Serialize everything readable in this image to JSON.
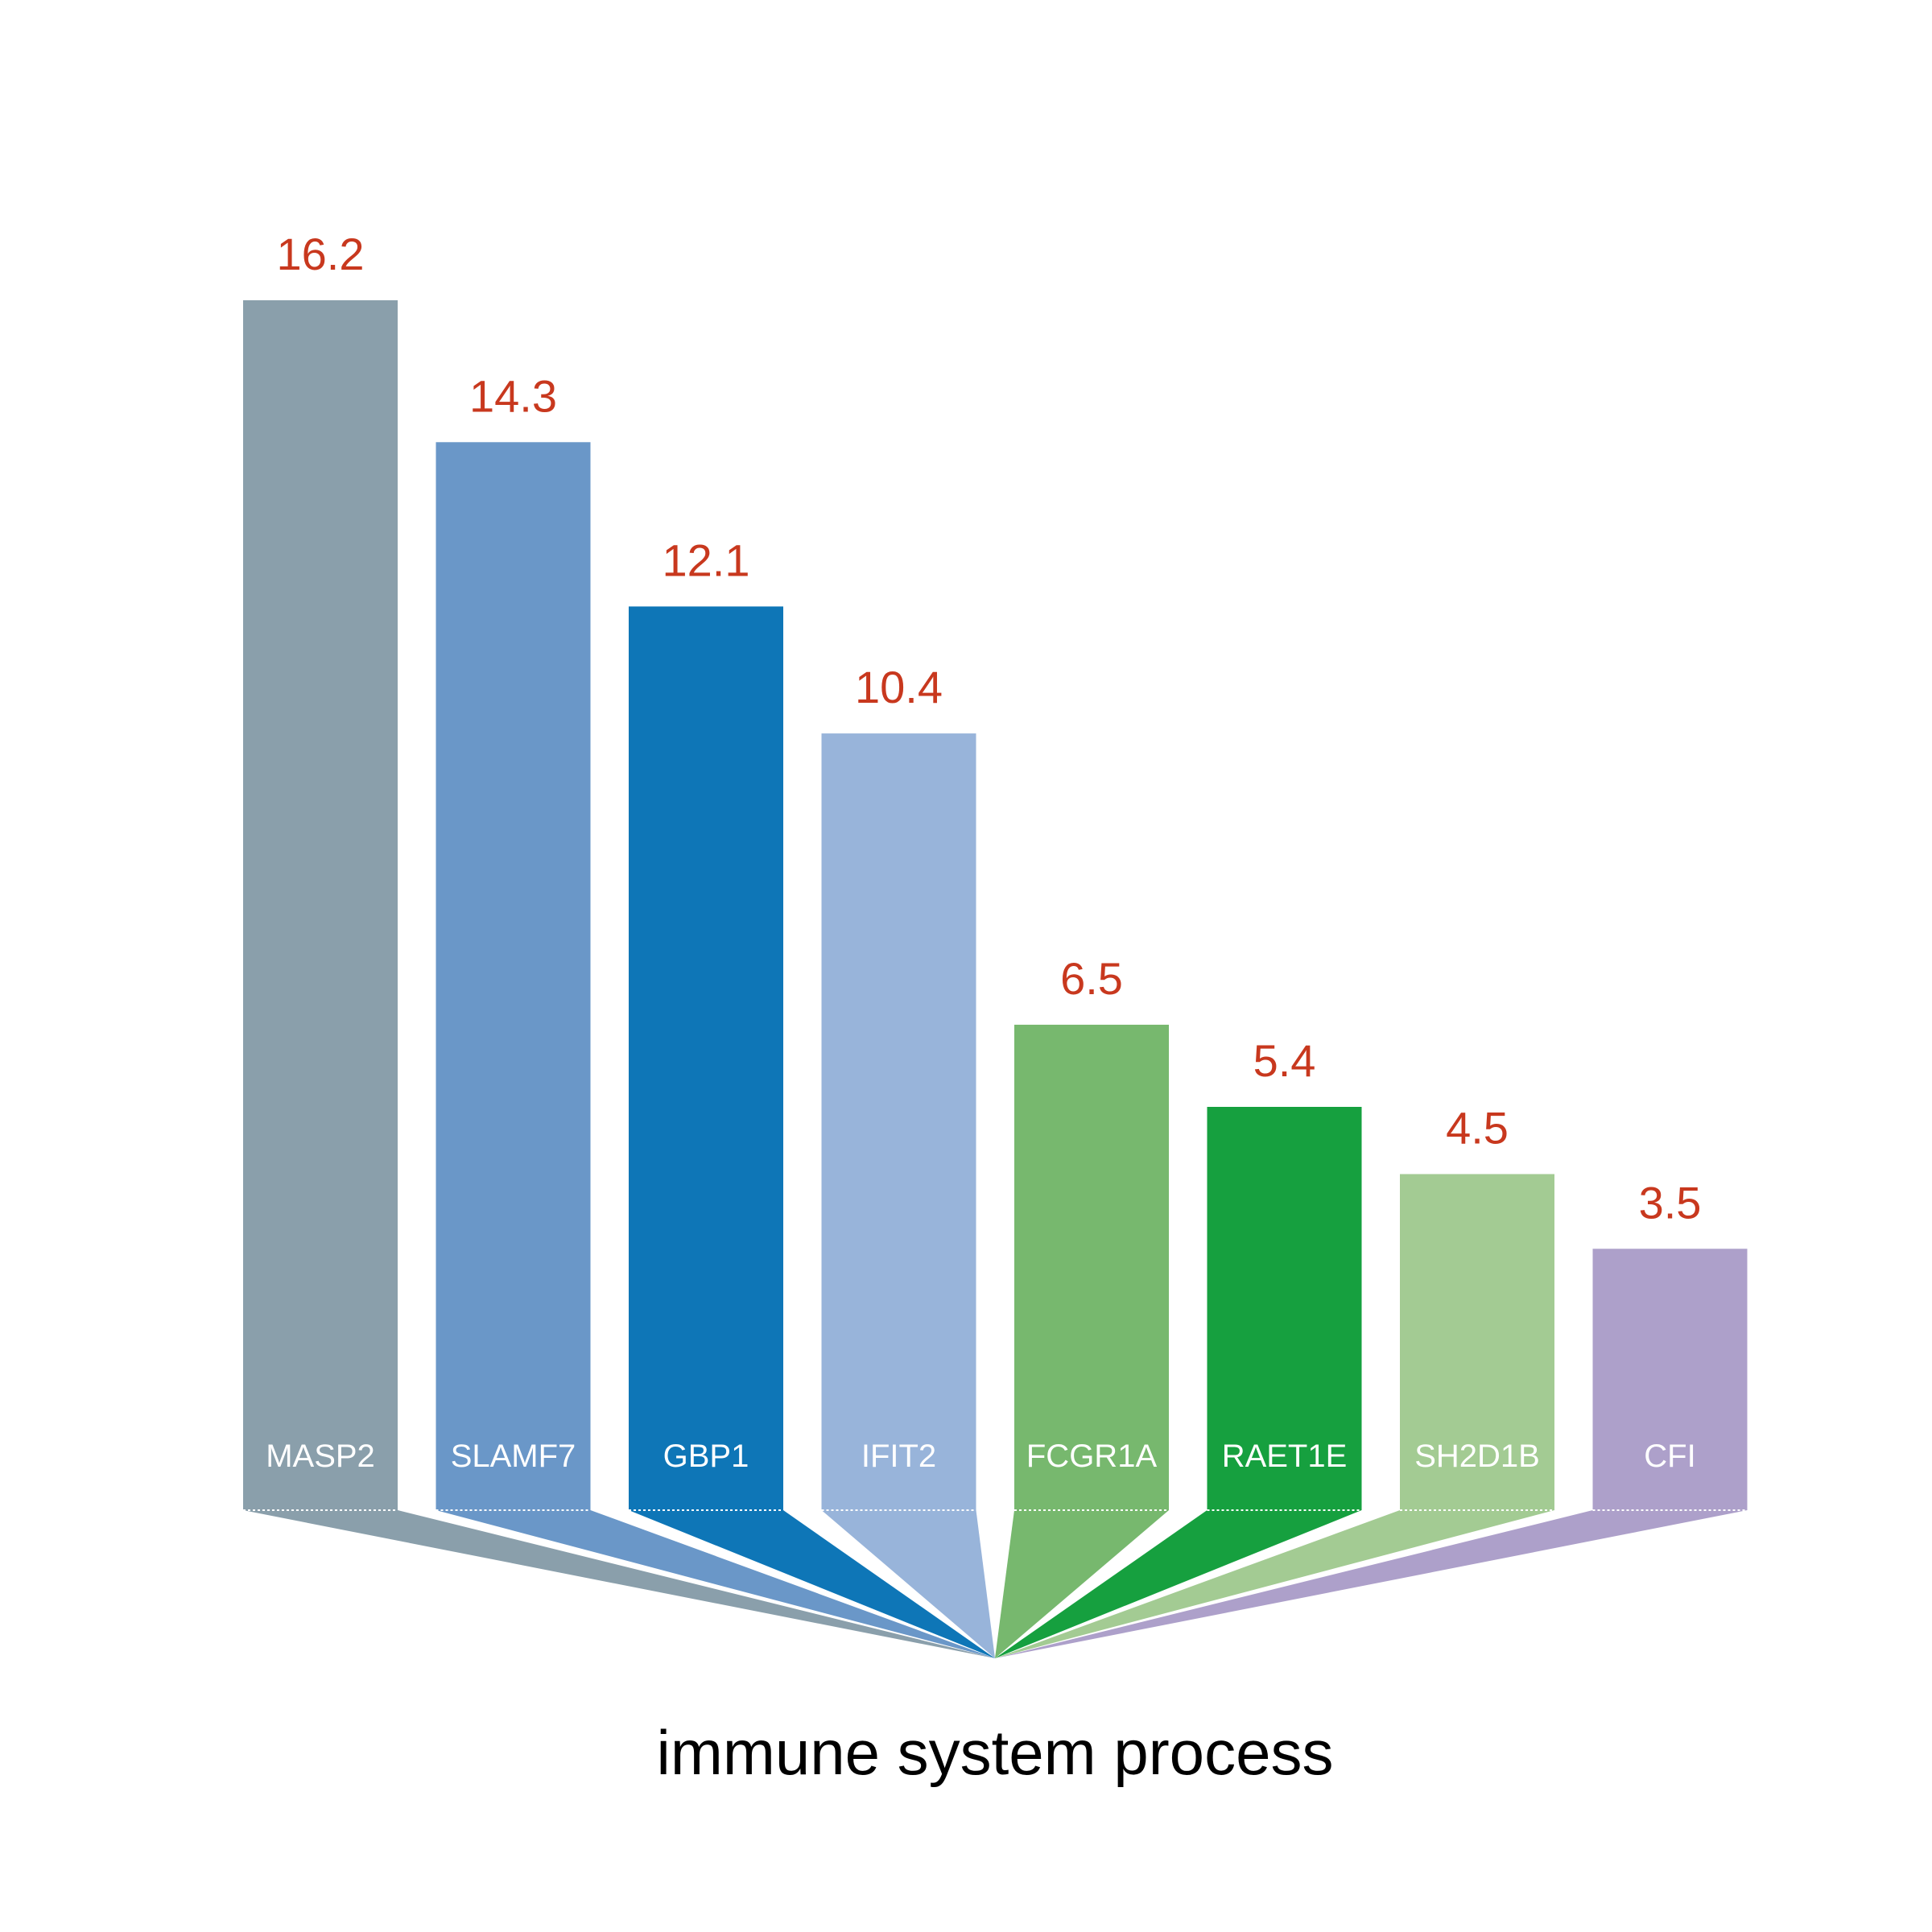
{
  "chart_data": {
    "type": "bar",
    "title": "immune system process",
    "categories": [
      "MASP2",
      "SLAMF7",
      "GBP1",
      "IFIT2",
      "FCGR1A",
      "RAET1E",
      "SH2D1B",
      "CFI"
    ],
    "values": [
      16.2,
      14.3,
      12.1,
      10.4,
      6.5,
      5.4,
      4.5,
      3.5
    ],
    "value_labels": [
      "16.2",
      "14.3",
      "12.1",
      "10.4",
      "6.5",
      "5.4",
      "4.5",
      "3.5"
    ],
    "colors": [
      "#8a9fab",
      "#6a97c8",
      "#0e76b7",
      "#98b4da",
      "#77b86e",
      "#16a03f",
      "#a3cb93",
      "#ada0ca"
    ],
    "value_label_color": "#c8381e",
    "bar_label_color": "#ffffff",
    "xlabel": "",
    "ylabel": "",
    "ylim": [
      0,
      16.2
    ],
    "grid": false,
    "legend": "none"
  }
}
